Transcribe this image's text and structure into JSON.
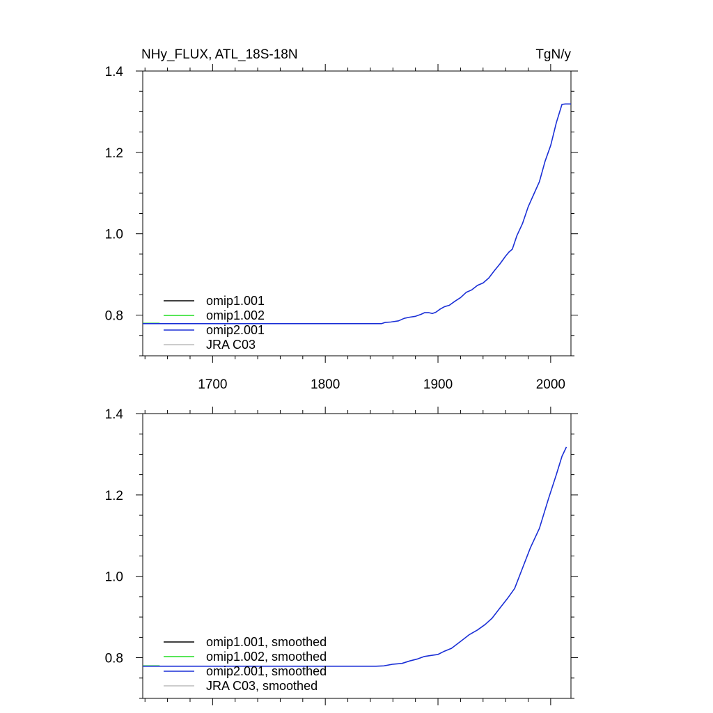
{
  "header": {
    "title_left": "NHy_FLUX, ATL_18S-18N",
    "title_right": "TgN/y"
  },
  "chart_data": [
    {
      "type": "line",
      "title": "NHy_FLUX, ATL_18S-18N",
      "units": "TgN/y",
      "xlim": [
        1638,
        2018
      ],
      "ylim": [
        0.7,
        1.4
      ],
      "xticks": [
        1700,
        1800,
        1900,
        2000
      ],
      "xtick_labels": [
        "1700",
        "1800",
        "1900",
        "2000"
      ],
      "yticks": [
        0.8,
        1.0,
        1.2,
        1.4
      ],
      "ytick_labels": [
        "0.8",
        "1.0",
        "1.2",
        "1.4"
      ],
      "grid": false,
      "legend_position": "bottom-left",
      "legend": [
        "omip1.001",
        "omip1.002",
        "omip2.001",
        "JRA C03"
      ],
      "colors": [
        "#000000",
        "#22dd22",
        "#1a2fd6",
        "#bbbbbb"
      ],
      "series": [
        {
          "name": "omip1.002",
          "x": [
            1638,
            1653
          ],
          "y": [
            0.78,
            0.78
          ]
        },
        {
          "name": "omip2.001",
          "x": [
            1638,
            1850,
            1853,
            1858,
            1865,
            1870,
            1875,
            1880,
            1885,
            1888,
            1892,
            1895,
            1898,
            1902,
            1906,
            1910,
            1915,
            1920,
            1925,
            1930,
            1935,
            1940,
            1945,
            1950,
            1955,
            1960,
            1963,
            1966,
            1970,
            1975,
            1980,
            1985,
            1990,
            1995,
            2000,
            2005,
            2010,
            2013,
            2018
          ],
          "y": [
            0.779,
            0.779,
            0.782,
            0.783,
            0.786,
            0.792,
            0.795,
            0.797,
            0.802,
            0.806,
            0.806,
            0.804,
            0.807,
            0.815,
            0.821,
            0.824,
            0.834,
            0.843,
            0.856,
            0.862,
            0.873,
            0.879,
            0.891,
            0.909,
            0.926,
            0.945,
            0.955,
            0.962,
            0.995,
            1.025,
            1.066,
            1.097,
            1.128,
            1.178,
            1.217,
            1.273,
            1.318,
            1.319,
            1.319
          ]
        }
      ]
    },
    {
      "type": "line",
      "title": "",
      "xlim": [
        1638,
        2018
      ],
      "ylim": [
        0.7,
        1.4
      ],
      "xticks": [
        1700,
        1800,
        1900,
        2000
      ],
      "yticks": [
        0.8,
        1.0,
        1.2,
        1.4
      ],
      "ytick_labels": [
        "0.8",
        "1.0",
        "1.2",
        "1.4"
      ],
      "grid": false,
      "legend_position": "bottom-left",
      "legend": [
        "omip1.001, smoothed",
        "omip1.002, smoothed",
        "omip2.001, smoothed",
        "JRA C03, smoothed"
      ],
      "colors": [
        "#000000",
        "#22dd22",
        "#1a2fd6",
        "#bbbbbb"
      ],
      "series": [
        {
          "name": "omip1.002, smoothed",
          "x": [
            1638,
            1653
          ],
          "y": [
            0.78,
            0.78
          ]
        },
        {
          "name": "omip2.001, smoothed",
          "x": [
            1638,
            1845,
            1852,
            1860,
            1868,
            1875,
            1882,
            1888,
            1895,
            1900,
            1905,
            1912,
            1920,
            1928,
            1935,
            1942,
            1948,
            1955,
            1962,
            1968,
            1975,
            1982,
            1990,
            1998,
            2005,
            2010,
            2014
          ],
          "y": [
            0.779,
            0.779,
            0.78,
            0.784,
            0.786,
            0.792,
            0.797,
            0.803,
            0.806,
            0.808,
            0.815,
            0.823,
            0.84,
            0.857,
            0.868,
            0.882,
            0.897,
            0.922,
            0.947,
            0.97,
            1.02,
            1.07,
            1.118,
            1.19,
            1.25,
            1.295,
            1.318
          ]
        }
      ]
    }
  ]
}
